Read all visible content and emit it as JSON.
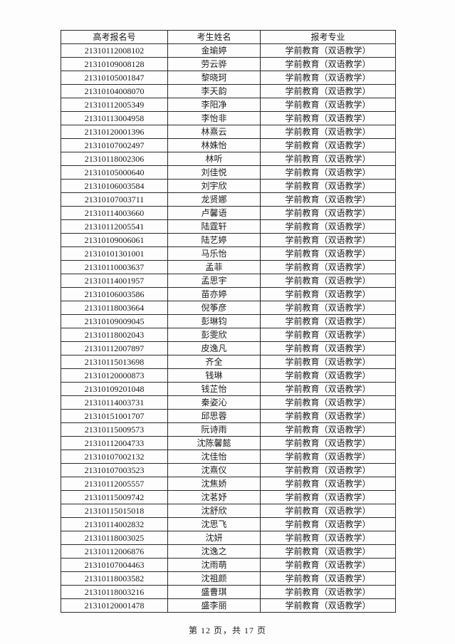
{
  "table": {
    "columns": [
      "高考报名号",
      "考生姓名",
      "报考专业"
    ],
    "rows": [
      {
        "exam_id": "21310112008102",
        "name": "金瑜婷",
        "major": "学前教育（双语教学）"
      },
      {
        "exam_id": "21310109008128",
        "name": "劳云骅",
        "major": "学前教育（双语教学）"
      },
      {
        "exam_id": "21310105001847",
        "name": "黎晓珂",
        "major": "学前教育（双语教学）"
      },
      {
        "exam_id": "21310104008070",
        "name": "李天韵",
        "major": "学前教育（双语教学）"
      },
      {
        "exam_id": "21310112005349",
        "name": "李阳净",
        "major": "学前教育（双语教学）"
      },
      {
        "exam_id": "21310113004958",
        "name": "李怡非",
        "major": "学前教育（双语教学）"
      },
      {
        "exam_id": "21310120001396",
        "name": "林熹云",
        "major": "学前教育（双语教学）"
      },
      {
        "exam_id": "21310107002497",
        "name": "林姝怡",
        "major": "学前教育（双语教学）"
      },
      {
        "exam_id": "21310118002306",
        "name": "林听",
        "major": "学前教育（双语教学）"
      },
      {
        "exam_id": "21310105000640",
        "name": "刘佳悦",
        "major": "学前教育（双语教学）"
      },
      {
        "exam_id": "21310106003584",
        "name": "刘宇欣",
        "major": "学前教育（双语教学）"
      },
      {
        "exam_id": "21310107003711",
        "name": "龙贤娜",
        "major": "学前教育（双语教学）"
      },
      {
        "exam_id": "21310114003660",
        "name": "卢馨语",
        "major": "学前教育（双语教学）"
      },
      {
        "exam_id": "21310112005541",
        "name": "陆霆轩",
        "major": "学前教育（双语教学）"
      },
      {
        "exam_id": "21310109006061",
        "name": "陆艺婷",
        "major": "学前教育（双语教学）"
      },
      {
        "exam_id": "21310101301001",
        "name": "马乐怡",
        "major": "学前教育（双语教学）"
      },
      {
        "exam_id": "21310110003637",
        "name": "孟菲",
        "major": "学前教育（双语教学）"
      },
      {
        "exam_id": "21310114001957",
        "name": "孟思宇",
        "major": "学前教育（双语教学）"
      },
      {
        "exam_id": "21310106003586",
        "name": "苗亦婷",
        "major": "学前教育（双语教学）"
      },
      {
        "exam_id": "21310118003664",
        "name": "倪筝彦",
        "major": "学前教育（双语教学）"
      },
      {
        "exam_id": "21310109009045",
        "name": "彭琳钧",
        "major": "学前教育（双语教学）"
      },
      {
        "exam_id": "21310118002043",
        "name": "彭雯欣",
        "major": "学前教育（双语教学）"
      },
      {
        "exam_id": "21310112007897",
        "name": "皮逸凡",
        "major": "学前教育（双语教学）"
      },
      {
        "exam_id": "21310115013698",
        "name": "齐全",
        "major": "学前教育（双语教学）"
      },
      {
        "exam_id": "21310120000873",
        "name": "钱琳",
        "major": "学前教育（双语教学）"
      },
      {
        "exam_id": "21310109201048",
        "name": "钱芷怡",
        "major": "学前教育（双语教学）"
      },
      {
        "exam_id": "21310114003731",
        "name": "秦姿沁",
        "major": "学前教育（双语教学）"
      },
      {
        "exam_id": "21310151001707",
        "name": "邱思蓉",
        "major": "学前教育（双语教学）"
      },
      {
        "exam_id": "21310115009573",
        "name": "阮诗雨",
        "major": "学前教育（双语教学）"
      },
      {
        "exam_id": "21310112004733",
        "name": "沈陈馨懿",
        "major": "学前教育（双语教学）"
      },
      {
        "exam_id": "21310107002132",
        "name": "沈佳怡",
        "major": "学前教育（双语教学）"
      },
      {
        "exam_id": "21310107003523",
        "name": "沈熹仪",
        "major": "学前教育（双语教学）"
      },
      {
        "exam_id": "21310112005557",
        "name": "沈焦娇",
        "major": "学前教育（双语教学）"
      },
      {
        "exam_id": "21310115009742",
        "name": "沈茗妤",
        "major": "学前教育（双语教学）"
      },
      {
        "exam_id": "21310115015018",
        "name": "沈舒欣",
        "major": "学前教育（双语教学）"
      },
      {
        "exam_id": "21310114002832",
        "name": "沈思飞",
        "major": "学前教育（双语教学）"
      },
      {
        "exam_id": "21310118003025",
        "name": "沈妍",
        "major": "学前教育（双语教学）"
      },
      {
        "exam_id": "21310112006876",
        "name": "沈逸之",
        "major": "学前教育（双语教学）"
      },
      {
        "exam_id": "21310107004463",
        "name": "沈雨萌",
        "major": "学前教育（双语教学）"
      },
      {
        "exam_id": "21310118003582",
        "name": "沈祖颜",
        "major": "学前教育（双语教学）"
      },
      {
        "exam_id": "21310118003216",
        "name": "盛曹琪",
        "major": "学前教育（双语教学）"
      },
      {
        "exam_id": "21310120001478",
        "name": "盛李丽",
        "major": "学前教育（双语教学）"
      }
    ]
  },
  "footer": {
    "page_info": "第 12 页，共 17 页"
  }
}
